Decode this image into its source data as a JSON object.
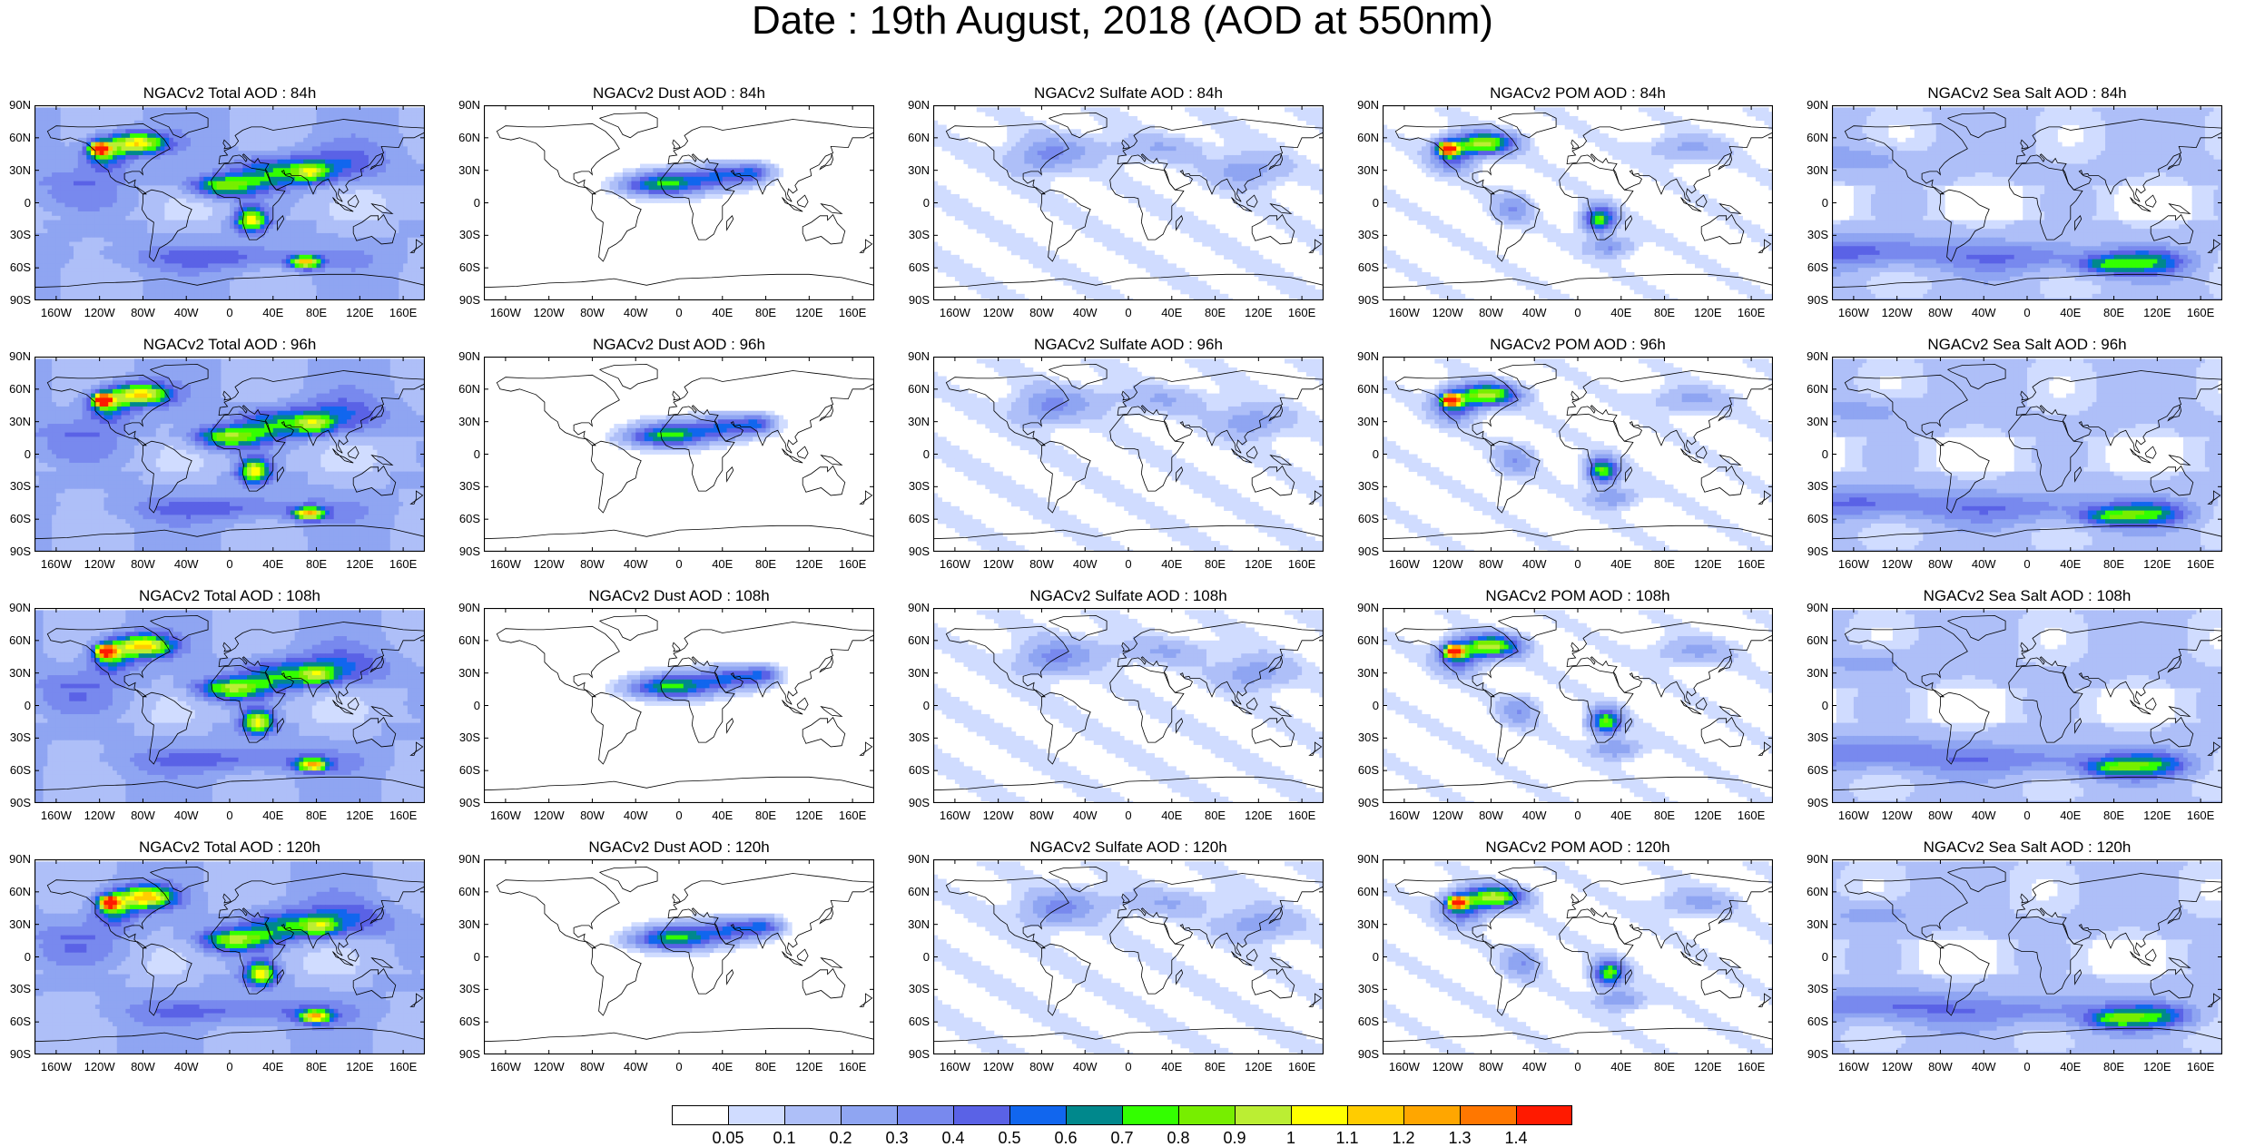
{
  "title": "Date : 19th August, 2018 (AOD at 550nm)",
  "lat_ticks": [
    "90N",
    "60N",
    "30N",
    "0",
    "30S",
    "60S",
    "90S"
  ],
  "lon_ticks": [
    "160W",
    "120W",
    "80W",
    "40W",
    "0",
    "40E",
    "80E",
    "120E",
    "160E"
  ],
  "panels": [
    {
      "title": "NGACv2 Total AOD : 84h",
      "species": "total",
      "hour": 84
    },
    {
      "title": "NGACv2 Dust AOD : 84h",
      "species": "dust",
      "hour": 84
    },
    {
      "title": "NGACv2 Sulfate AOD : 84h",
      "species": "sulfate",
      "hour": 84
    },
    {
      "title": "NGACv2 POM AOD : 84h",
      "species": "pom",
      "hour": 84
    },
    {
      "title": "NGACv2 Sea Salt AOD : 84h",
      "species": "seasalt",
      "hour": 84
    },
    {
      "title": "NGACv2 Total AOD : 96h",
      "species": "total",
      "hour": 96
    },
    {
      "title": "NGACv2 Dust AOD : 96h",
      "species": "dust",
      "hour": 96
    },
    {
      "title": "NGACv2 Sulfate AOD : 96h",
      "species": "sulfate",
      "hour": 96
    },
    {
      "title": "NGACv2 POM AOD : 96h",
      "species": "pom",
      "hour": 96
    },
    {
      "title": "NGACv2 Sea Salt AOD : 96h",
      "species": "seasalt",
      "hour": 96
    },
    {
      "title": "NGACv2 Total AOD : 108h",
      "species": "total",
      "hour": 108
    },
    {
      "title": "NGACv2 Dust AOD : 108h",
      "species": "dust",
      "hour": 108
    },
    {
      "title": "NGACv2 Sulfate AOD : 108h",
      "species": "sulfate",
      "hour": 108
    },
    {
      "title": "NGACv2 POM AOD : 108h",
      "species": "pom",
      "hour": 108
    },
    {
      "title": "NGACv2 Sea Salt AOD : 108h",
      "species": "seasalt",
      "hour": 108
    },
    {
      "title": "NGACv2 Total AOD : 120h",
      "species": "total",
      "hour": 120
    },
    {
      "title": "NGACv2 Dust AOD : 120h",
      "species": "dust",
      "hour": 120
    },
    {
      "title": "NGACv2 Sulfate AOD : 120h",
      "species": "sulfate",
      "hour": 120
    },
    {
      "title": "NGACv2 POM AOD : 120h",
      "species": "pom",
      "hour": 120
    },
    {
      "title": "NGACv2 Sea Salt  AOD : 120h",
      "species": "seasalt",
      "hour": 120
    }
  ],
  "colorbar": {
    "labels": [
      "0.05",
      "0.1",
      "0.2",
      "0.3",
      "0.4",
      "0.5",
      "0.6",
      "0.7",
      "0.8",
      "0.9",
      "1",
      "1.1",
      "1.2",
      "1.3",
      "1.4"
    ],
    "colors": [
      "#ffffff",
      "#d0dcff",
      "#aebff8",
      "#8fa5f2",
      "#7889ee",
      "#5a62e6",
      "#1166ee",
      "#00888c",
      "#33ff00",
      "#77ee00",
      "#bbee33",
      "#ffff00",
      "#ffcc00",
      "#ffa600",
      "#ff7700",
      "#ff1a00"
    ]
  }
}
